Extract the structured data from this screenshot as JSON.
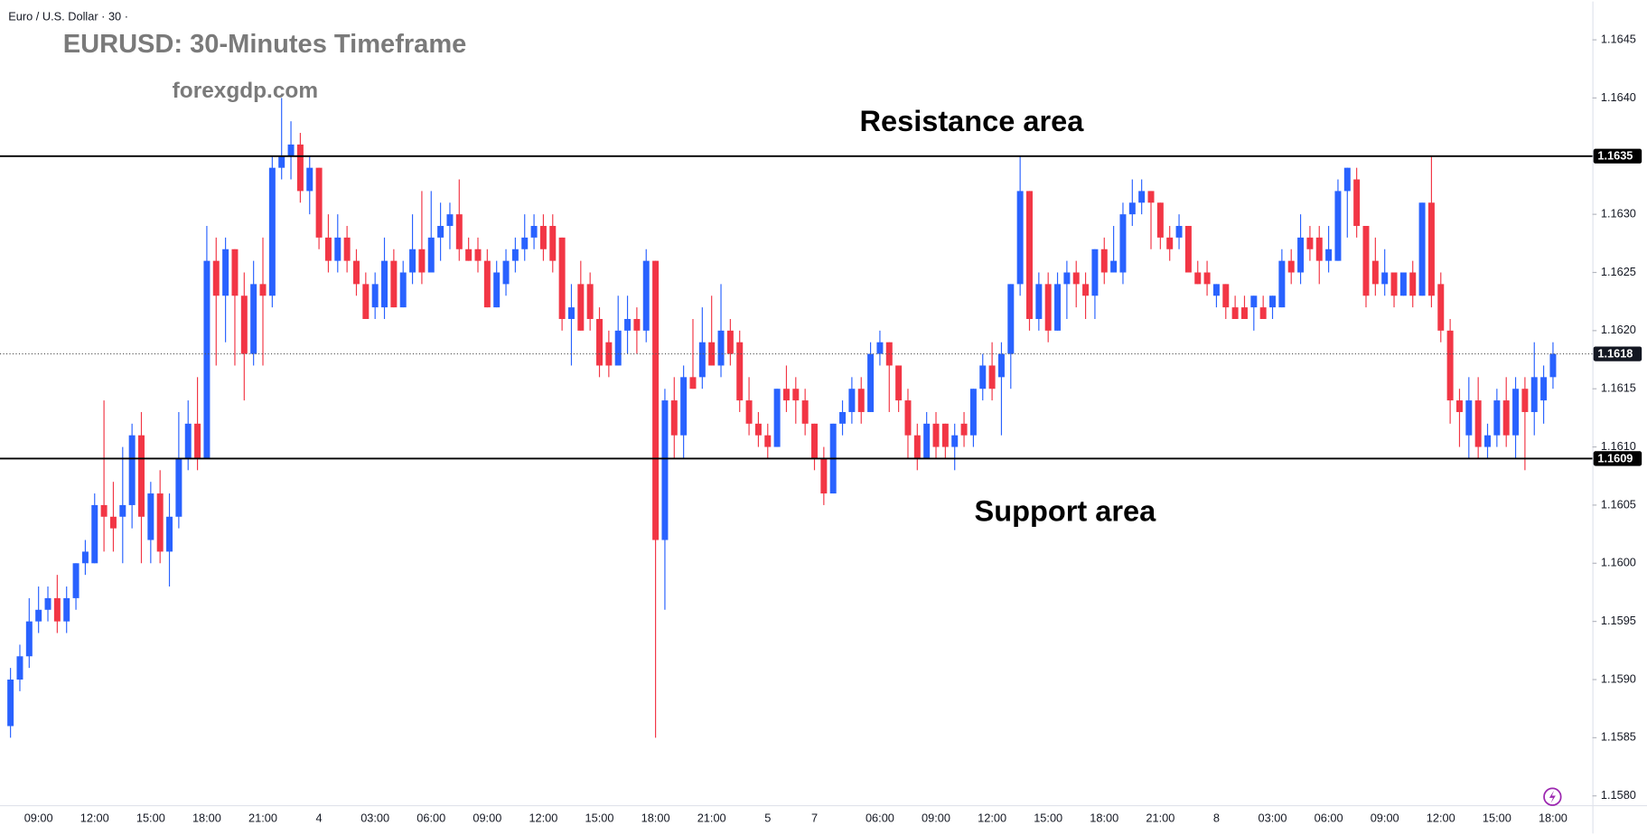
{
  "header": "Euro / U.S. Dollar · 30 ·",
  "chart_data": {
    "type": "candlestick",
    "title": "EURUSD: 30-Minutes Timeframe",
    "subtitle": "forexgdp.com",
    "annotations": [
      "Resistance area",
      "Support area"
    ],
    "up_color": "#2962ff",
    "down_color": "#f23645",
    "categories": [
      null,
      null,
      null,
      "09:00",
      null,
      null,
      null,
      null,
      null,
      "12:00",
      null,
      null,
      null,
      null,
      null,
      "15:00",
      null,
      null,
      null,
      null,
      null,
      "18:00",
      null,
      null,
      null,
      null,
      null,
      "21:00",
      null,
      null,
      null,
      null,
      null,
      "4",
      null,
      null,
      null,
      null,
      null,
      "03:00",
      null,
      null,
      null,
      null,
      null,
      "06:00",
      null,
      null,
      null,
      null,
      null,
      "09:00",
      null,
      null,
      null,
      null,
      null,
      "12:00",
      null,
      null,
      null,
      null,
      null,
      "15:00",
      null,
      null,
      null,
      null,
      null,
      "18:00",
      null,
      null,
      null,
      null,
      null,
      "21:00",
      null,
      null,
      null,
      null,
      null,
      "5",
      null,
      null,
      null,
      null,
      "7",
      null,
      null,
      null,
      null,
      null,
      null,
      "06:00",
      null,
      null,
      null,
      null,
      null,
      "09:00",
      null,
      null,
      null,
      null,
      null,
      "12:00",
      null,
      null,
      null,
      null,
      null,
      "15:00",
      null,
      null,
      null,
      null,
      null,
      "18:00",
      null,
      null,
      null,
      null,
      null,
      "21:00",
      null,
      null,
      null,
      null,
      null,
      "8",
      null,
      null,
      null,
      null,
      null,
      "03:00",
      null,
      null,
      null,
      null,
      null,
      "06:00",
      null,
      null,
      null,
      null,
      null,
      "09:00",
      null,
      null,
      null,
      null,
      null,
      "12:00",
      null,
      null,
      null,
      null,
      null,
      "15:00",
      null,
      null,
      null,
      null,
      null,
      "18:00"
    ],
    "open": [
      1.1586,
      1.159,
      1.1592,
      1.1595,
      1.1596,
      1.1597,
      1.1595,
      1.1597,
      1.16,
      1.16,
      1.1605,
      1.1604,
      1.1604,
      1.1605,
      1.1611,
      1.1602,
      1.1606,
      1.1601,
      1.1604,
      1.1609,
      1.1612,
      1.1609,
      1.1626,
      1.1623,
      1.1627,
      1.1623,
      1.1618,
      1.1624,
      1.1623,
      1.1634,
      1.1635,
      1.1636,
      1.1632,
      1.1634,
      1.1628,
      1.1626,
      1.1628,
      1.1626,
      1.1624,
      1.1622,
      1.1622,
      1.1626,
      1.1622,
      1.1625,
      1.1627,
      1.1625,
      1.1628,
      1.1629,
      1.163,
      1.1627,
      1.1627,
      1.1626,
      1.1622,
      1.1624,
      1.1626,
      1.1627,
      1.1628,
      1.1629,
      1.1629,
      1.1628,
      1.1621,
      1.1624,
      1.1624,
      1.1621,
      1.1619,
      1.1617,
      1.162,
      1.1621,
      1.162,
      1.1626,
      1.1602,
      1.1614,
      1.1611,
      1.1616,
      1.1616,
      1.1619,
      1.1617,
      1.162,
      1.1619,
      1.1614,
      1.1612,
      1.1611,
      1.161,
      1.1615,
      1.1615,
      1.1614,
      1.1612,
      1.1609,
      1.1606,
      1.1612,
      1.1613,
      1.1615,
      1.1613,
      1.1618,
      1.1619,
      1.1617,
      1.1614,
      1.1611,
      1.1609,
      1.1612,
      1.1612,
      1.161,
      1.1612,
      1.1611,
      1.1615,
      1.1617,
      1.1616,
      1.1618,
      1.1624,
      1.1632,
      1.1621,
      1.1624,
      1.162,
      1.1624,
      1.1625,
      1.1624,
      1.1623,
      1.1627,
      1.1625,
      1.1625,
      1.163,
      1.1631,
      1.1632,
      1.1631,
      1.1628,
      1.1628,
      1.1629,
      1.1625,
      1.1625,
      1.1623,
      1.1624,
      1.1622,
      1.1622,
      1.1622,
      1.1622,
      1.1622,
      1.1622,
      1.1626,
      1.1625,
      1.1628,
      1.1628,
      1.1626,
      1.1626,
      1.1632,
      1.1633,
      1.1629,
      1.1626,
      1.1624,
      1.1625,
      1.1623,
      1.1625,
      1.1623,
      1.1631,
      1.1624,
      1.162,
      1.1614,
      1.1611,
      1.1614,
      1.161,
      1.1611,
      1.1614,
      1.1611,
      1.1615,
      1.1613,
      1.1614,
      1.1616
    ],
    "high": [
      1.1591,
      1.1593,
      1.1597,
      1.1598,
      1.1598,
      1.1599,
      1.1598,
      1.16,
      1.1602,
      1.1606,
      1.1614,
      1.1607,
      1.161,
      1.1612,
      1.1613,
      1.1607,
      1.1608,
      1.1606,
      1.1613,
      1.1614,
      1.1616,
      1.1629,
      1.1628,
      1.1628,
      1.1627,
      1.1625,
      1.1626,
      1.1628,
      1.1635,
      1.164,
      1.1638,
      1.1637,
      1.1635,
      1.1634,
      1.163,
      1.163,
      1.1629,
      1.1627,
      1.1625,
      1.1625,
      1.1628,
      1.1627,
      1.1626,
      1.163,
      1.1632,
      1.1632,
      1.1631,
      1.1631,
      1.1633,
      1.1628,
      1.1628,
      1.1627,
      1.1626,
      1.1627,
      1.1628,
      1.163,
      1.163,
      1.163,
      1.163,
      1.1628,
      1.1624,
      1.1626,
      1.1625,
      1.1622,
      1.162,
      1.1623,
      1.1623,
      1.1622,
      1.1627,
      1.1626,
      1.1615,
      1.1616,
      1.1617,
      1.1621,
      1.1622,
      1.1623,
      1.1624,
      1.1621,
      1.162,
      1.1616,
      1.1613,
      1.1612,
      1.1615,
      1.1617,
      1.1616,
      1.1615,
      1.1612,
      1.161,
      1.1612,
      1.1614,
      1.1616,
      1.1616,
      1.1619,
      1.162,
      1.1619,
      1.1617,
      1.1615,
      1.1612,
      1.1613,
      1.1613,
      1.1612,
      1.1612,
      1.1613,
      1.1615,
      1.1618,
      1.1619,
      1.1619,
      1.1624,
      1.1635,
      1.1632,
      1.1625,
      1.1625,
      1.1625,
      1.1626,
      1.1626,
      1.1625,
      1.1627,
      1.1628,
      1.1629,
      1.1631,
      1.1633,
      1.1633,
      1.1632,
      1.1631,
      1.1629,
      1.163,
      1.1629,
      1.1626,
      1.1626,
      1.1624,
      1.1624,
      1.1623,
      1.1623,
      1.1623,
      1.1623,
      1.1623,
      1.1627,
      1.1627,
      1.163,
      1.1629,
      1.1629,
      1.1629,
      1.1633,
      1.1634,
      1.1634,
      1.1629,
      1.1628,
      1.1627,
      1.1625,
      1.1625,
      1.1626,
      1.1631,
      1.1635,
      1.1625,
      1.1621,
      1.1615,
      1.1616,
      1.1616,
      1.1612,
      1.1615,
      1.1616,
      1.1616,
      1.1616,
      1.1619,
      1.1617,
      1.1619
    ],
    "low": [
      1.1585,
      1.1589,
      1.1591,
      1.1594,
      1.1595,
      1.1594,
      1.1594,
      1.1596,
      1.1599,
      1.16,
      1.1601,
      1.1601,
      1.16,
      1.1603,
      1.16,
      1.16,
      1.16,
      1.1598,
      1.1603,
      1.1608,
      1.1608,
      1.1609,
      1.1617,
      1.1619,
      1.1617,
      1.1614,
      1.1617,
      1.1617,
      1.1622,
      1.1633,
      1.1633,
      1.1631,
      1.163,
      1.1627,
      1.1625,
      1.1625,
      1.1625,
      1.1623,
      1.1621,
      1.1621,
      1.1621,
      1.1622,
      1.1622,
      1.1624,
      1.1624,
      1.1625,
      1.1626,
      1.1627,
      1.1626,
      1.1626,
      1.1625,
      1.1622,
      1.1622,
      1.1623,
      1.1625,
      1.1626,
      1.1627,
      1.1626,
      1.1625,
      1.162,
      1.1617,
      1.162,
      1.162,
      1.1616,
      1.1616,
      1.1617,
      1.1618,
      1.1618,
      1.1619,
      1.1585,
      1.1596,
      1.1609,
      1.1609,
      1.1615,
      1.1615,
      1.1617,
      1.1616,
      1.1617,
      1.1613,
      1.1611,
      1.161,
      1.1609,
      1.161,
      1.1613,
      1.1612,
      1.1611,
      1.1608,
      1.1605,
      1.1606,
      1.1611,
      1.1612,
      1.1612,
      1.1613,
      1.1617,
      1.1613,
      1.1613,
      1.1609,
      1.1608,
      1.1609,
      1.1609,
      1.1609,
      1.1608,
      1.161,
      1.161,
      1.1614,
      1.1614,
      1.1611,
      1.1615,
      1.1623,
      1.162,
      1.162,
      1.1619,
      1.162,
      1.1621,
      1.1622,
      1.1621,
      1.1621,
      1.1624,
      1.1625,
      1.1624,
      1.1629,
      1.163,
      1.1627,
      1.1627,
      1.1626,
      1.1627,
      1.1625,
      1.1624,
      1.1623,
      1.1622,
      1.1621,
      1.1621,
      1.1621,
      1.162,
      1.1621,
      1.1621,
      1.1622,
      1.1624,
      1.1624,
      1.1626,
      1.1624,
      1.1625,
      1.1626,
      1.1628,
      1.1628,
      1.1622,
      1.1623,
      1.1623,
      1.1622,
      1.1623,
      1.1622,
      1.1623,
      1.1622,
      1.1619,
      1.1612,
      1.161,
      1.1609,
      1.1609,
      1.1609,
      1.161,
      1.161,
      1.1609,
      1.1608,
      1.1611,
      1.1612,
      1.1615
    ],
    "close": [
      1.159,
      1.1592,
      1.1595,
      1.1596,
      1.1597,
      1.1595,
      1.1597,
      1.16,
      1.1601,
      1.1605,
      1.1604,
      1.1603,
      1.1605,
      1.1611,
      1.1604,
      1.1606,
      1.1601,
      1.1604,
      1.1609,
      1.1612,
      1.1609,
      1.1626,
      1.1623,
      1.1627,
      1.1623,
      1.1618,
      1.1624,
      1.1623,
      1.1634,
      1.1635,
      1.1636,
      1.1632,
      1.1634,
      1.1628,
      1.1626,
      1.1628,
      1.1626,
      1.1624,
      1.1621,
      1.1624,
      1.1626,
      1.1622,
      1.1625,
      1.1627,
      1.1625,
      1.1628,
      1.1629,
      1.163,
      1.1627,
      1.1626,
      1.1626,
      1.1622,
      1.1625,
      1.1626,
      1.1627,
      1.1628,
      1.1629,
      1.1627,
      1.1626,
      1.1621,
      1.1622,
      1.162,
      1.1621,
      1.1617,
      1.1617,
      1.162,
      1.1621,
      1.162,
      1.1626,
      1.1602,
      1.1614,
      1.1611,
      1.1616,
      1.1615,
      1.1619,
      1.1617,
      1.162,
      1.1618,
      1.1614,
      1.1612,
      1.1611,
      1.161,
      1.1615,
      1.1614,
      1.1614,
      1.1612,
      1.1609,
      1.1606,
      1.1612,
      1.1613,
      1.1615,
      1.1613,
      1.1618,
      1.1619,
      1.1617,
      1.1614,
      1.1611,
      1.1609,
      1.1612,
      1.161,
      1.161,
      1.1611,
      1.1611,
      1.1615,
      1.1617,
      1.1615,
      1.1618,
      1.1624,
      1.1632,
      1.1621,
      1.1624,
      1.162,
      1.1624,
      1.1625,
      1.1624,
      1.1623,
      1.1627,
      1.1625,
      1.1626,
      1.163,
      1.1631,
      1.1632,
      1.1631,
      1.1628,
      1.1627,
      1.1629,
      1.1625,
      1.1624,
      1.1624,
      1.1624,
      1.1622,
      1.1621,
      1.1621,
      1.1623,
      1.1621,
      1.1623,
      1.1626,
      1.1625,
      1.1628,
      1.1627,
      1.1626,
      1.1627,
      1.1632,
      1.1634,
      1.1629,
      1.1623,
      1.1624,
      1.1625,
      1.1623,
      1.1625,
      1.1623,
      1.1631,
      1.1623,
      1.162,
      1.1614,
      1.1613,
      1.1614,
      1.161,
      1.1611,
      1.1614,
      1.1611,
      1.1615,
      1.1613,
      1.1616,
      1.1616,
      1.1618
    ],
    "ylim": [
      1.15792,
      1.16483
    ],
    "yticks": [
      1.1645,
      {
        "value": 1.164,
        "label": "1.1640"
      },
      1.1635,
      {
        "value": 1.163,
        "label": "1.1630"
      },
      1.1625,
      {
        "value": 1.162,
        "label": "1.1620"
      },
      1.1615,
      {
        "value": 1.161,
        "label": "1.1610"
      },
      1.1605,
      {
        "value": 1.16,
        "label": "1.1600"
      },
      1.1595,
      {
        "value": 1.159,
        "label": "1.1590"
      },
      1.1585,
      {
        "value": 1.158,
        "label": "1.1580"
      }
    ],
    "levels": [
      1.1635,
      1.1609
    ],
    "level_color": "#000000",
    "last_price": 1.1618
  }
}
